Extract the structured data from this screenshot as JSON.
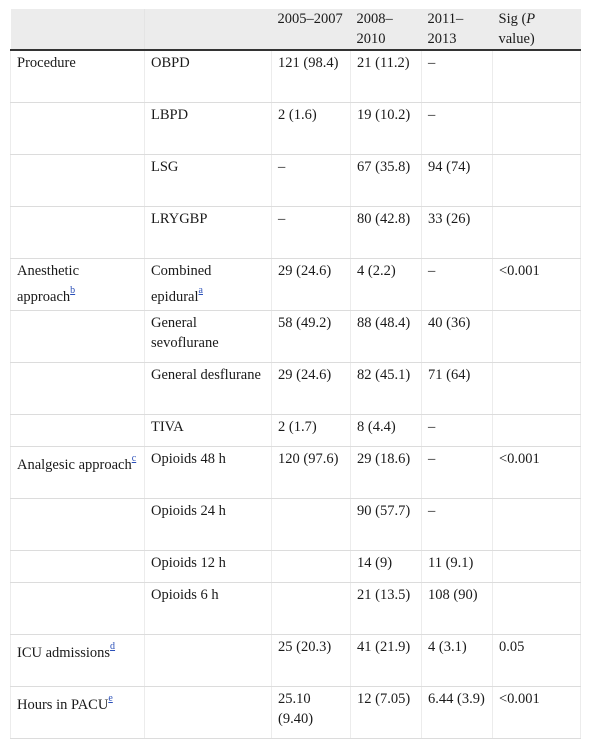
{
  "header": [
    "",
    "",
    "2005–2007",
    "2008–2010",
    "2011–2013",
    "Sig (P value)"
  ],
  "header_sig": {
    "prefix": "Sig (",
    "italic": "P",
    "suffix": " value)"
  },
  "rows": [
    {
      "c1": "Procedure",
      "c1_note": "",
      "c2": "OBPD",
      "c2_note": "",
      "c3": "121 (98.4)",
      "c4": "21 (11.2)",
      "c5": "–",
      "c6": ""
    },
    {
      "c1": "",
      "c1_note": "",
      "c2": "LBPD",
      "c2_note": "",
      "c3": "2 (1.6)",
      "c4": "19 (10.2)",
      "c5": "–",
      "c6": ""
    },
    {
      "c1": "",
      "c1_note": "",
      "c2": "LSG",
      "c2_note": "",
      "c3": "–",
      "c4": "67 (35.8)",
      "c5": "94 (74)",
      "c6": ""
    },
    {
      "c1": "",
      "c1_note": "",
      "c2": "LRYGBP",
      "c2_note": "",
      "c3": "–",
      "c4": "80 (42.8)",
      "c5": "33 (26)",
      "c6": ""
    },
    {
      "c1": "Anesthetic approach",
      "c1_note": "b",
      "c2": "Combined epidural",
      "c2_note": "a",
      "c3": "29 (24.6)",
      "c4": "4 (2.2)",
      "c5": "–",
      "c6": "<0.001"
    },
    {
      "c1": "",
      "c1_note": "",
      "c2": "General sevoflurane",
      "c2_note": "",
      "c3": "58 (49.2)",
      "c4": "88 (48.4)",
      "c5": "40 (36)",
      "c6": ""
    },
    {
      "c1": "",
      "c1_note": "",
      "c2": "General desflurane",
      "c2_note": "",
      "c3": "29 (24.6)",
      "c4": "82 (45.1)",
      "c5": "71 (64)",
      "c6": ""
    },
    {
      "c1": "",
      "c1_note": "",
      "c2": "TIVA",
      "c2_note": "",
      "c3": "2 (1.7)",
      "c4": "8 (4.4)",
      "c5": "–",
      "c6": ""
    },
    {
      "c1": "Analgesic approach",
      "c1_note": "c",
      "c2": "Opioids 48 h",
      "c2_note": "",
      "c3": "120 (97.6)",
      "c4": "29 (18.6)",
      "c5": "–",
      "c6": "<0.001"
    },
    {
      "c1": "",
      "c1_note": "",
      "c2": "Opioids 24 h",
      "c2_note": "",
      "c3": "",
      "c4": "90 (57.7)",
      "c5": "–",
      "c6": ""
    },
    {
      "c1": "",
      "c1_note": "",
      "c2": "Opioids 12 h",
      "c2_note": "",
      "c3": "",
      "c4": "14 (9)",
      "c5": "11 (9.1)",
      "c6": ""
    },
    {
      "c1": "",
      "c1_note": "",
      "c2": "Opioids 6 h",
      "c2_note": "",
      "c3": "",
      "c4": "21 (13.5)",
      "c5": "108 (90)",
      "c6": ""
    },
    {
      "c1": "ICU admissions",
      "c1_note": "d",
      "c2": "",
      "c2_note": "",
      "c3": "25 (20.3)",
      "c4": "41 (21.9)",
      "c5": "4 (3.1)",
      "c6": "0.05"
    },
    {
      "c1": "Hours in PACU",
      "c1_note": "e",
      "c2": "",
      "c2_note": "",
      "c3": "25.10 (9.40)",
      "c4": "12 (7.05)",
      "c5": "6.44 (3.9)",
      "c6": "<0.001"
    }
  ],
  "colors": {
    "header_bg": "#ececec",
    "link": "#2a4fb8",
    "rule": "#333333"
  }
}
